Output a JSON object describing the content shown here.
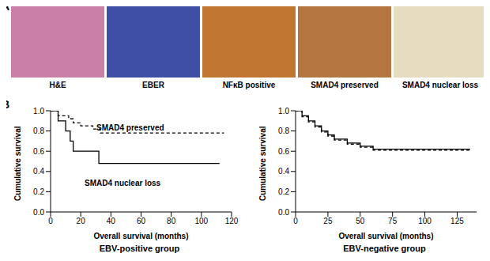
{
  "panel_labels": [
    "A",
    "B"
  ],
  "images": [
    {
      "label": "H&E",
      "color": "#c97fa6"
    },
    {
      "label": "EBER",
      "color": "#3f4fa6"
    },
    {
      "label": "NFκB positive",
      "color": "#c0762e"
    },
    {
      "label": "SMAD4 preserved",
      "color": "#b5773f"
    },
    {
      "label": "SMAD4 nuclear loss",
      "color": "#e6dcc0"
    }
  ],
  "chart_data": [
    {
      "type": "line",
      "title": "EBV-positive group",
      "x_label": "Overall survival (months)",
      "y_label": "Cumulative survival",
      "xlim": [
        0,
        120
      ],
      "xticks": [
        0,
        20,
        40,
        60,
        80,
        100,
        120
      ],
      "ylim": [
        0,
        1
      ],
      "yticks": [
        {
          "value": 0,
          "label": "0.0"
        },
        {
          "value": 0.2,
          "label": "0.2"
        },
        {
          "value": 0.4,
          "label": "0.4"
        },
        {
          "value": 0.6,
          "label": "0.6"
        },
        {
          "value": 0.8,
          "label": "0.8"
        },
        {
          "value": 1,
          "label": "1.0"
        }
      ],
      "line_style": "step",
      "series": [
        {
          "name": "SMAD4 preserved",
          "color": "#000000",
          "line_style": "dashed",
          "x": [
            0,
            5,
            12,
            15,
            20,
            28,
            33,
            115
          ],
          "values": [
            1,
            0.95,
            0.92,
            0.88,
            0.85,
            0.82,
            0.78,
            0.78
          ]
        },
        {
          "name": "SMAD4 nuclear loss",
          "color": "#000000",
          "line_style": "solid",
          "x": [
            0,
            5,
            10,
            13,
            15,
            32,
            112
          ],
          "values": [
            1,
            0.9,
            0.8,
            0.7,
            0.6,
            0.48,
            0.48
          ]
        }
      ]
    },
    {
      "type": "line",
      "title": "EBV-negative group",
      "x_label": "Overall survival (months)",
      "y_label": "Cumulative survival",
      "xlim": [
        0,
        140
      ],
      "xticks": [
        0,
        25,
        50,
        75,
        100,
        125
      ],
      "ylim": [
        0,
        1
      ],
      "yticks": [
        {
          "value": 0,
          "label": "0.0"
        },
        {
          "value": 0.2,
          "label": "0.2"
        },
        {
          "value": 0.4,
          "label": "0.4"
        },
        {
          "value": 0.6,
          "label": "0.6"
        },
        {
          "value": 0.8,
          "label": "0.8"
        },
        {
          "value": 1,
          "label": "1.0"
        }
      ],
      "line_style": "step",
      "series": [
        {
          "color": "#000000",
          "line_style": "solid",
          "x": [
            0,
            5,
            10,
            15,
            20,
            25,
            30,
            40,
            50,
            60,
            135
          ],
          "values": [
            1,
            0.95,
            0.9,
            0.85,
            0.8,
            0.76,
            0.72,
            0.68,
            0.65,
            0.62,
            0.62
          ]
        },
        {
          "color": "#000000",
          "line_style": "dashed",
          "x": [
            0,
            5,
            10,
            15,
            20,
            25,
            30,
            40,
            50,
            60,
            135
          ],
          "values": [
            1,
            0.94,
            0.89,
            0.84,
            0.79,
            0.75,
            0.71,
            0.67,
            0.64,
            0.61,
            0.61
          ]
        }
      ]
    }
  ]
}
